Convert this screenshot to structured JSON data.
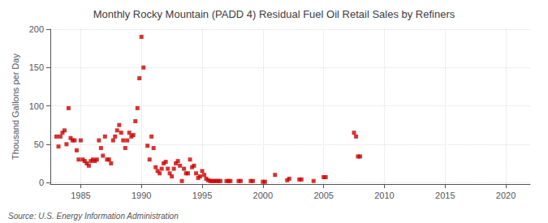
{
  "chart_data": {
    "type": "scatter",
    "title": "Monthly Rocky Mountain (PADD 4) Residual Fuel Oil Retail Sales by Refiners",
    "ylabel": "Thousand Gallons per Day",
    "annotations": [
      "Source: U.S. Energy Information Administration"
    ],
    "color": "#cc0000",
    "marker": "square",
    "grid": true,
    "xlim": [
      1982.5,
      2022
    ],
    "ylim": [
      -2,
      200
    ],
    "yticks": [
      0,
      50,
      100,
      150,
      200
    ],
    "xticks": [
      1985,
      1990,
      1995,
      2000,
      2005,
      2010,
      2015,
      2020
    ],
    "x": [
      1983.0,
      1983.17,
      1983.33,
      1983.5,
      1983.67,
      1983.83,
      1984.0,
      1984.17,
      1984.33,
      1984.5,
      1984.67,
      1984.83,
      1985.0,
      1985.17,
      1985.33,
      1985.5,
      1985.67,
      1985.83,
      1986.0,
      1986.17,
      1986.33,
      1986.5,
      1986.67,
      1986.83,
      1987.0,
      1987.17,
      1987.33,
      1987.5,
      1987.67,
      1987.83,
      1988.0,
      1988.17,
      1988.33,
      1988.5,
      1988.67,
      1988.83,
      1989.0,
      1989.17,
      1989.33,
      1989.5,
      1989.67,
      1989.83,
      1990.0,
      1990.17,
      1990.5,
      1990.67,
      1990.83,
      1991.0,
      1991.17,
      1991.33,
      1991.5,
      1991.67,
      1991.83,
      1992.0,
      1992.17,
      1992.33,
      1992.5,
      1992.67,
      1992.83,
      1993.0,
      1993.17,
      1993.33,
      1993.5,
      1993.67,
      1993.83,
      1994.0,
      1994.17,
      1994.33,
      1994.5,
      1994.67,
      1994.83,
      1995.0,
      1995.17,
      1995.33,
      1995.5,
      1995.67,
      1995.83,
      1996.0,
      1996.17,
      1996.33,
      1996.5,
      1997.0,
      1997.17,
      1997.33,
      1998.0,
      1998.17,
      1999.0,
      1999.17,
      2000.0,
      2000.17,
      2001.0,
      2002.0,
      2002.17,
      2003.0,
      2003.17,
      2004.17,
      2005.0,
      2005.17,
      2007.5,
      2007.67,
      2007.83,
      2008.0
    ],
    "values": [
      60,
      47,
      60,
      65,
      68,
      50,
      97,
      58,
      55,
      55,
      42,
      30,
      55,
      30,
      28,
      25,
      22,
      28,
      30,
      28,
      30,
      55,
      45,
      35,
      60,
      30,
      30,
      25,
      55,
      60,
      68,
      75,
      65,
      55,
      45,
      55,
      65,
      60,
      62,
      80,
      97,
      136,
      190,
      150,
      48,
      30,
      60,
      45,
      20,
      15,
      12,
      18,
      25,
      27,
      18,
      12,
      8,
      18,
      25,
      28,
      22,
      2,
      18,
      12,
      12,
      30,
      20,
      22,
      12,
      6,
      8,
      15,
      10,
      5,
      3,
      2,
      2,
      2,
      2,
      2,
      2,
      2,
      2,
      2,
      2,
      2,
      2,
      2,
      1,
      1,
      10,
      3,
      5,
      4,
      4,
      2,
      7,
      7,
      65,
      60,
      34,
      34
    ]
  }
}
